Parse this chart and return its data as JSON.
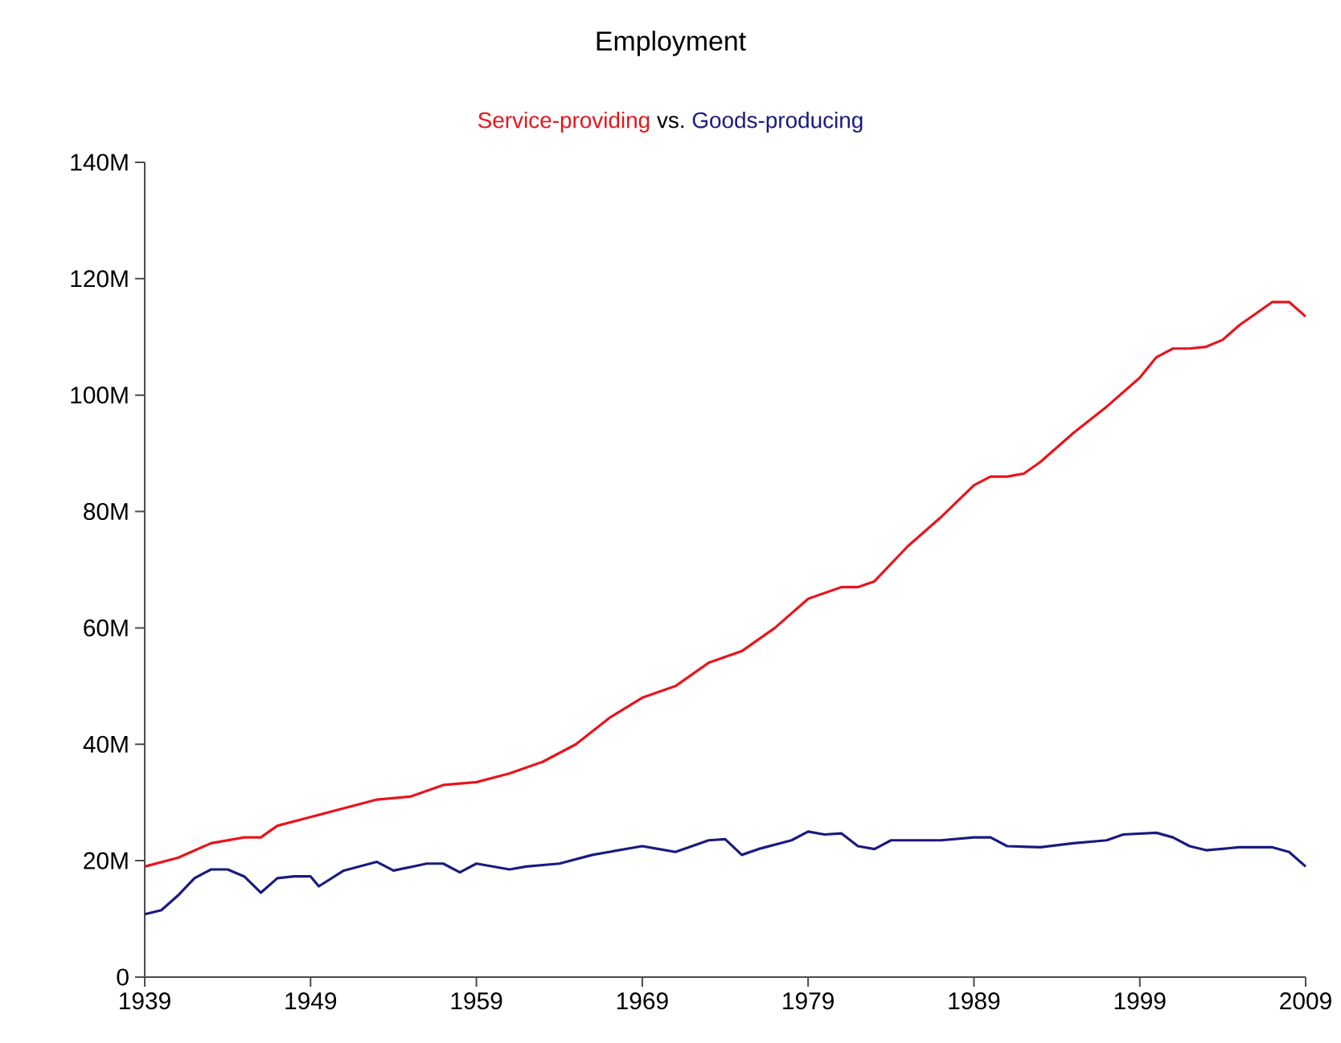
{
  "chart_data": {
    "type": "line",
    "title": "Employment",
    "subtitle": "vs.",
    "legend": "top",
    "grid": false,
    "marker": "none",
    "line_style": "solid",
    "xlim": [
      1939,
      2009
    ],
    "xticks": [
      1939,
      1949,
      1959,
      1969,
      1979,
      1989,
      1999,
      2009
    ],
    "ylim": [
      0,
      140
    ],
    "yticks": [
      0,
      {
        "value": 20,
        "label": "20M"
      },
      {
        "value": 40,
        "label": "40M"
      },
      {
        "value": 60,
        "label": "60M"
      },
      {
        "value": 80,
        "label": "80M"
      },
      {
        "value": 100,
        "label": "100M"
      },
      {
        "value": 120,
        "label": "120M"
      },
      {
        "value": 140,
        "label": "140M"
      }
    ],
    "series": [
      {
        "name": "Service-providing",
        "color": "#e8141c",
        "x": [
          1939,
          1941,
          1943,
          1945,
          1946,
          1947,
          1949,
          1951,
          1953,
          1955,
          1957,
          1959,
          1961,
          1963,
          1965,
          1967,
          1969,
          1971,
          1973,
          1975,
          1977,
          1979,
          1981,
          1982,
          1983,
          1985,
          1987,
          1989,
          1990,
          1991,
          1992,
          1993,
          1995,
          1997,
          1999,
          2000,
          2001,
          2002,
          2003,
          2004,
          2005,
          2006,
          2007,
          2008,
          2009
        ],
        "values": [
          19,
          20.5,
          23,
          24,
          24,
          26,
          27.5,
          29,
          30.5,
          31,
          33,
          33.5,
          35,
          37,
          40,
          44.5,
          48,
          50,
          54,
          56,
          60,
          65,
          67,
          67,
          68,
          74,
          79,
          84.5,
          86,
          86,
          86.5,
          88.5,
          93.5,
          98,
          103,
          106.5,
          108,
          108,
          108.3,
          109.5,
          112,
          114,
          116,
          116,
          113.5
        ]
      },
      {
        "name": "Goods-producing",
        "color": "#1a1a80",
        "x": [
          1939,
          1940,
          1941,
          1942,
          1943,
          1944,
          1945,
          1946,
          1947,
          1948,
          1949,
          1949.5,
          1951,
          1953,
          1954,
          1956,
          1957,
          1958,
          1959,
          1961,
          1962,
          1964,
          1966,
          1967,
          1969,
          1970,
          1971,
          1973,
          1974,
          1975,
          1976,
          1978,
          1979,
          1980,
          1981,
          1982,
          1983,
          1984,
          1987,
          1989,
          1990,
          1991,
          1993,
          1995,
          1997,
          1998,
          2000,
          2001,
          2002,
          2003,
          2005,
          2007,
          2008,
          2009
        ],
        "values": [
          10.8,
          11.5,
          14,
          17,
          18.5,
          18.5,
          17.3,
          14.5,
          17,
          17.3,
          17.3,
          15.6,
          18.3,
          19.8,
          18.3,
          19.5,
          19.5,
          18,
          19.5,
          18.5,
          19,
          19.5,
          21,
          21.5,
          22.5,
          22,
          21.5,
          23.5,
          23.7,
          21,
          22,
          23.5,
          25,
          24.5,
          24.7,
          22.5,
          22,
          23.5,
          23.5,
          24,
          24,
          22.5,
          22.3,
          23,
          23.5,
          24.5,
          24.8,
          24,
          22.5,
          21.8,
          22.3,
          22.3,
          21.5,
          19
        ]
      }
    ]
  }
}
